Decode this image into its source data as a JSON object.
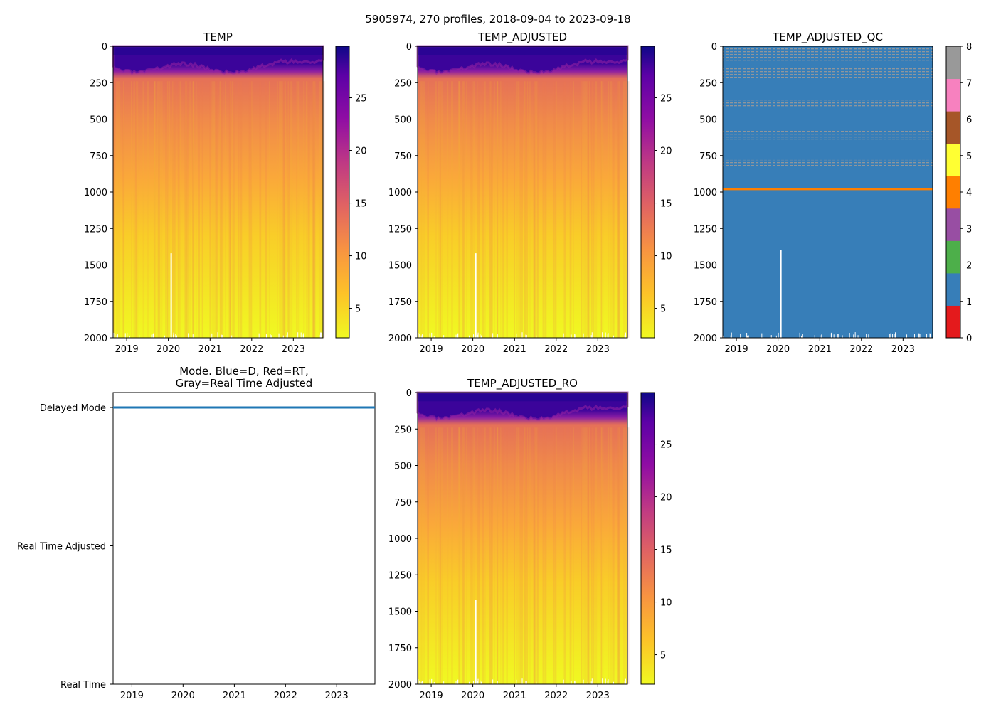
{
  "figure_title": "5905974, 270 profiles, 2018-09-04 to 2023-09-18",
  "chart_data": [
    {
      "id": "temp",
      "type": "heatmap",
      "title": "TEMP",
      "xlabel": "",
      "ylabel": "",
      "x_ticks": [
        "2019",
        "2020",
        "2021",
        "2022",
        "2023"
      ],
      "y_ticks": [
        0,
        250,
        500,
        750,
        1000,
        1250,
        1500,
        1750,
        2000
      ],
      "ylim": [
        2000,
        0
      ],
      "colorbar": {
        "colormap": "plasma_r",
        "range": [
          2.2,
          29.9
        ],
        "ticks": [
          5,
          10,
          15,
          20,
          25
        ]
      }
    },
    {
      "id": "temp_adjusted",
      "type": "heatmap",
      "title": "TEMP_ADJUSTED",
      "x_ticks": [
        "2019",
        "2020",
        "2021",
        "2022",
        "2023"
      ],
      "y_ticks": [
        0,
        250,
        500,
        750,
        1000,
        1250,
        1500,
        1750,
        2000
      ],
      "ylim": [
        2000,
        0
      ],
      "colorbar": {
        "colormap": "plasma_r",
        "range": [
          2.2,
          29.9
        ],
        "ticks": [
          5,
          10,
          15,
          20,
          25
        ]
      }
    },
    {
      "id": "temp_adjusted_qc",
      "type": "heatmap",
      "title": "TEMP_ADJUSTED_QC",
      "x_ticks": [
        "2019",
        "2020",
        "2021",
        "2022",
        "2023"
      ],
      "y_ticks": [
        0,
        250,
        500,
        750,
        1000,
        1250,
        1500,
        1750,
        2000
      ],
      "ylim": [
        2000,
        0
      ],
      "colorbar": {
        "colormap": "Set1",
        "range": [
          0,
          8
        ],
        "ticks": [
          0,
          1,
          2,
          3,
          4,
          5,
          6,
          7,
          8
        ],
        "colors": [
          "#e41a1c",
          "#377eb8",
          "#4daf4a",
          "#984ea3",
          "#ff7f00",
          "#ffff33",
          "#a65628",
          "#f781bf",
          "#999999"
        ]
      },
      "dominant_value": 1,
      "flag8_depth_bands": [
        [
          0,
          100
        ],
        [
          150,
          230
        ],
        [
          370,
          420
        ],
        [
          580,
          640
        ],
        [
          780,
          830
        ]
      ],
      "flag4_depth": 980
    },
    {
      "id": "mode",
      "type": "line",
      "title": "Mode. Blue=D, Red=RT,\nGray=Real Time Adjusted",
      "title_lines": [
        "Mode. Blue=D, Red=RT,",
        "Gray=Real Time Adjusted"
      ],
      "x_ticks": [
        "2019",
        "2020",
        "2021",
        "2022",
        "2023"
      ],
      "y_ticks": [
        "Delayed Mode",
        "Real Time Adjusted",
        "Real Time"
      ],
      "series": [
        {
          "name": "Delayed Mode",
          "color": "#1f77b4",
          "x": [
            "2018-09-04",
            "2023-09-18"
          ],
          "y": [
            "Delayed Mode",
            "Delayed Mode"
          ]
        }
      ]
    },
    {
      "id": "temp_adjusted_ro",
      "type": "heatmap",
      "title": "TEMP_ADJUSTED_RO",
      "x_ticks": [
        "2019",
        "2020",
        "2021",
        "2022",
        "2023"
      ],
      "y_ticks": [
        0,
        250,
        500,
        750,
        1000,
        1250,
        1500,
        1750,
        2000
      ],
      "ylim": [
        2000,
        0
      ],
      "colorbar": {
        "colormap": "plasma_r",
        "range": [
          2.2,
          29.9
        ],
        "ticks": [
          5,
          10,
          15,
          20,
          25
        ]
      }
    }
  ]
}
